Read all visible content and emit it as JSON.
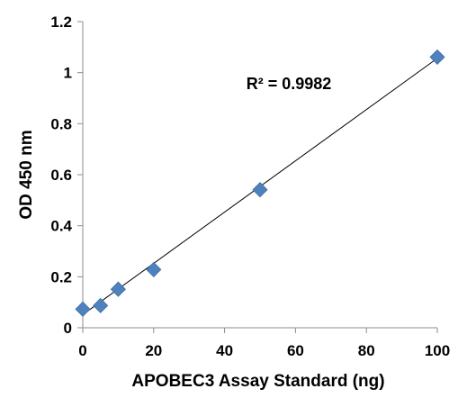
{
  "chart_data": {
    "type": "scatter",
    "title": "",
    "xlabel": "APOBEC3 Assay Standard (ng)",
    "ylabel": "OD 450 nm",
    "xlim": [
      0,
      100
    ],
    "ylim": [
      0,
      1.2
    ],
    "x_ticks": [
      "0",
      "20",
      "40",
      "60",
      "80",
      "100"
    ],
    "y_ticks": [
      "0",
      "0.2",
      "0.4",
      "0.6",
      "0.8",
      "1",
      "1.2"
    ],
    "grid": false,
    "legend": "none",
    "series": [
      {
        "x": [
          0,
          5,
          10,
          20,
          50,
          100
        ],
        "y": [
          0.073,
          0.087,
          0.151,
          0.228,
          0.541,
          1.061
        ],
        "marker": "diamond",
        "color": "#4f81bd"
      }
    ],
    "trendline": {
      "type": "linear",
      "x": [
        0,
        100
      ],
      "y": [
        0.0514,
        1.0562
      ],
      "color": "#000000"
    },
    "annotations": [
      {
        "text": "R² = 0.9982",
        "position": "upper-middle"
      }
    ]
  }
}
